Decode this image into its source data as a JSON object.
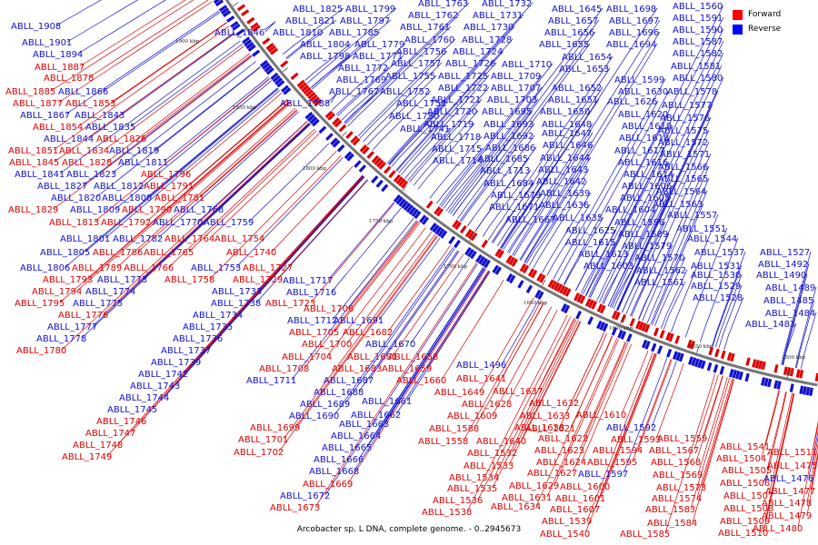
{
  "caption": "Arcobacter sp. L DNA, complete genome. - 0..2945673",
  "legend": [
    {
      "label": "Forward",
      "color": "#ff0000"
    },
    {
      "label": "Reverse",
      "color": "#0000ff"
    }
  ],
  "colors": {
    "forward": "#dd0000",
    "reverse": "#1010cc",
    "backbone": "#777777"
  },
  "ticks": [
    "1500 kbp",
    "1550 kbp",
    "1600 kbp",
    "1650 kbp",
    "1700 kbp",
    "1750 kbp",
    "1800 kbp",
    "1850 kbp",
    "1900 kbp"
  ],
  "labels": [
    {
      "t": "ABLL_1908",
      "s": "r"
    },
    {
      "t": "ABLL_1901",
      "s": "r"
    },
    {
      "t": "ABLL_1894",
      "s": "r"
    },
    {
      "t": "ABLL_1887",
      "s": "f"
    },
    {
      "t": "ABLL_1878",
      "s": "f"
    },
    {
      "t": "ABLL_1885",
      "s": "f"
    },
    {
      "t": "ABLL_1866",
      "s": "r"
    },
    {
      "t": "ABLL_1877",
      "s": "f"
    },
    {
      "t": "ABLL_1853",
      "s": "f"
    },
    {
      "t": "ABLL_1867",
      "s": "r"
    },
    {
      "t": "ABLL_1843",
      "s": "r"
    },
    {
      "t": "ABLL_1835",
      "s": "r"
    },
    {
      "t": "ABLL_1854",
      "s": "f"
    },
    {
      "t": "ABLL_1826",
      "s": "f"
    },
    {
      "t": "ABLL_1844",
      "s": "r"
    },
    {
      "t": "ABLL_1819",
      "s": "r"
    },
    {
      "t": "ABLL_1851",
      "s": "f"
    },
    {
      "t": "ABLL_1834",
      "s": "f"
    },
    {
      "t": "ABLL_1845",
      "s": "f"
    },
    {
      "t": "ABLL_1828",
      "s": "f"
    },
    {
      "t": "ABLL_1811",
      "s": "r"
    },
    {
      "t": "ABLL_1841",
      "s": "r"
    },
    {
      "t": "ABLL_1823",
      "s": "r"
    },
    {
      "t": "ABLL_1796",
      "s": "f"
    },
    {
      "t": "ABLL_1827",
      "s": "r"
    },
    {
      "t": "ABLL_1812",
      "s": "r"
    },
    {
      "t": "ABLL_1791",
      "s": "f"
    },
    {
      "t": "ABLL_1820",
      "s": "r"
    },
    {
      "t": "ABLL_1800",
      "s": "r"
    },
    {
      "t": "ABLL_1781",
      "s": "f"
    },
    {
      "t": "ABLL_1829",
      "s": "f"
    },
    {
      "t": "ABLL_1809",
      "s": "r"
    },
    {
      "t": "ABLL_1790",
      "s": "f"
    },
    {
      "t": "ABLL_1768",
      "s": "r"
    },
    {
      "t": "ABLL_1813",
      "s": "f"
    },
    {
      "t": "ABLL_1792",
      "s": "f"
    },
    {
      "t": "ABLL_1770",
      "s": "r"
    },
    {
      "t": "ABLL_1759",
      "s": "r"
    },
    {
      "t": "ABLL_1801",
      "s": "r"
    },
    {
      "t": "ABLL_1782",
      "s": "r"
    },
    {
      "t": "ABLL_1764",
      "s": "f"
    },
    {
      "t": "ABLL_1754",
      "s": "f"
    },
    {
      "t": "ABLL_1805",
      "s": "r"
    },
    {
      "t": "ABLL_1786",
      "s": "f"
    },
    {
      "t": "ABLL_1765",
      "s": "f"
    },
    {
      "t": "ABLL_1740",
      "s": "f"
    },
    {
      "t": "ABLL_1806",
      "s": "r"
    },
    {
      "t": "ABLL_1789",
      "s": "f"
    },
    {
      "t": "ABLL_1766",
      "s": "f"
    },
    {
      "t": "ABLL_1753",
      "s": "r"
    },
    {
      "t": "ABLL_1727",
      "s": "f"
    },
    {
      "t": "ABLL_1793",
      "s": "f"
    },
    {
      "t": "ABLL_1773",
      "s": "r"
    },
    {
      "t": "ABLL_1758",
      "s": "f"
    },
    {
      "t": "ABLL_1729",
      "s": "f"
    },
    {
      "t": "ABLL_1794",
      "s": "f"
    },
    {
      "t": "ABLL_1774",
      "s": "r"
    },
    {
      "t": "ABLL_1733",
      "s": "r"
    },
    {
      "t": "ABLL_1717",
      "s": "r"
    },
    {
      "t": "ABLL_1795",
      "s": "f"
    },
    {
      "t": "ABLL_1775",
      "s": "r"
    },
    {
      "t": "ABLL_1716",
      "s": "r"
    },
    {
      "t": "ABLL_1738",
      "s": "r"
    },
    {
      "t": "ABLL_1723",
      "s": "f"
    },
    {
      "t": "ABLL_1776",
      "s": "f"
    },
    {
      "t": "ABLL_1734",
      "s": "r"
    },
    {
      "t": "ABLL_1706",
      "s": "f"
    },
    {
      "t": "ABLL_1777",
      "s": "r"
    },
    {
      "t": "ABLL_1735",
      "s": "r"
    },
    {
      "t": "ABLL_1712",
      "s": "r"
    },
    {
      "t": "ABLL_1691",
      "s": "r"
    },
    {
      "t": "ABLL_1778",
      "s": "r"
    },
    {
      "t": "ABLL_1736",
      "s": "r"
    },
    {
      "t": "ABLL_1705",
      "s": "f"
    },
    {
      "t": "ABLL_1682",
      "s": "f"
    },
    {
      "t": "ABLL_1780",
      "s": "f"
    },
    {
      "t": "ABLL_1737",
      "s": "r"
    },
    {
      "t": "ABLL_1700",
      "s": "f"
    },
    {
      "t": "ABLL_1670",
      "s": "r"
    },
    {
      "t": "ABLL_1739",
      "s": "r"
    },
    {
      "t": "ABLL_1704",
      "s": "f"
    },
    {
      "t": "ABLL_1681",
      "s": "f"
    },
    {
      "t": "ABLL_1658",
      "s": "f"
    },
    {
      "t": "ABLL_1742",
      "s": "r"
    },
    {
      "t": "ABLL_1708",
      "s": "f"
    },
    {
      "t": "ABLL_1683",
      "s": "f"
    },
    {
      "t": "ABLL_1659",
      "s": "f"
    },
    {
      "t": "ABLL_1743",
      "s": "r"
    },
    {
      "t": "ABLL_1711",
      "s": "r"
    },
    {
      "t": "ABLL_1687",
      "s": "r"
    },
    {
      "t": "ABLL_1660",
      "s": "f"
    },
    {
      "t": "ABLL_1744",
      "s": "r"
    },
    {
      "t": "ABLL_1688",
      "s": "r"
    },
    {
      "t": "ABLL_1661",
      "s": "r"
    },
    {
      "t": "ABLL_1649",
      "s": "f"
    },
    {
      "t": "ABLL_1745",
      "s": "r"
    },
    {
      "t": "ABLL_1689",
      "s": "r"
    },
    {
      "t": "ABLL_1662",
      "s": "r"
    },
    {
      "t": "ABLL_1746",
      "s": "f"
    },
    {
      "t": "ABLL_1690",
      "s": "r"
    },
    {
      "t": "ABLL_1663",
      "s": "r"
    },
    {
      "t": "ABLL_1747",
      "s": "f"
    },
    {
      "t": "ABLL_1699",
      "s": "f"
    },
    {
      "t": "ABLL_1664",
      "s": "r"
    },
    {
      "t": "ABLL_1748",
      "s": "f"
    },
    {
      "t": "ABLL_1701",
      "s": "f"
    },
    {
      "t": "ABLL_1665",
      "s": "r"
    },
    {
      "t": "ABLL_1749",
      "s": "f"
    },
    {
      "t": "ABLL_1702",
      "s": "f"
    },
    {
      "t": "ABLL_1666",
      "s": "r"
    },
    {
      "t": "ABLL_1668",
      "s": "r"
    },
    {
      "t": "ABLL_1669",
      "s": "f"
    },
    {
      "t": "ABLL_1672",
      "s": "r"
    },
    {
      "t": "ABLL_1673",
      "s": "f"
    },
    {
      "t": "ABLL_1825",
      "s": "r"
    },
    {
      "t": "ABLL_1799",
      "s": "r"
    },
    {
      "t": "ABLL_1763",
      "s": "r"
    },
    {
      "t": "ABLL_1732",
      "s": "r"
    },
    {
      "t": "ABLL_1821",
      "s": "r"
    },
    {
      "t": "ABLL_1797",
      "s": "r"
    },
    {
      "t": "ABLL_1762",
      "s": "r"
    },
    {
      "t": "ABLL_1731",
      "s": "r"
    },
    {
      "t": "ABLL_1810",
      "s": "r"
    },
    {
      "t": "ABLL_1785",
      "s": "r"
    },
    {
      "t": "ABLL_1761",
      "s": "r"
    },
    {
      "t": "ABLL_1730",
      "s": "r"
    },
    {
      "t": "ABLL_1846",
      "s": "r"
    },
    {
      "t": "ABLL_1804",
      "s": "r"
    },
    {
      "t": "ABLL_1779",
      "s": "r"
    },
    {
      "t": "ABLL_1760",
      "s": "r"
    },
    {
      "t": "ABLL_1728",
      "s": "r"
    },
    {
      "t": "ABLL_1798",
      "s": "r"
    },
    {
      "t": "ABLL_1771",
      "s": "r"
    },
    {
      "t": "ABLL_1756",
      "s": "r"
    },
    {
      "t": "ABLL_1724",
      "s": "r"
    },
    {
      "t": "ABLL_1772",
      "s": "r"
    },
    {
      "t": "ABLL_1757",
      "s": "r"
    },
    {
      "t": "ABLL_1726",
      "s": "r"
    },
    {
      "t": "ABLL_1710",
      "s": "r"
    },
    {
      "t": "ABLL_1769",
      "s": "r"
    },
    {
      "t": "ABLL_1755",
      "s": "r"
    },
    {
      "t": "ABLL_1725",
      "s": "r"
    },
    {
      "t": "ABLL_1709",
      "s": "r"
    },
    {
      "t": "ABLL_1767",
      "s": "r"
    },
    {
      "t": "ABLL_1752",
      "s": "r"
    },
    {
      "t": "ABLL_1722",
      "s": "r"
    },
    {
      "t": "ABLL_1707",
      "s": "r"
    },
    {
      "t": "ABLL_1788",
      "s": "r"
    },
    {
      "t": "ABLL_1751",
      "s": "r"
    },
    {
      "t": "ABLL_1721",
      "s": "r"
    },
    {
      "t": "ABLL_1703",
      "s": "r"
    },
    {
      "t": "ABLL_1750",
      "s": "r"
    },
    {
      "t": "ABLL_1720",
      "s": "r"
    },
    {
      "t": "ABLL_1695",
      "s": "r"
    },
    {
      "t": "ABLL_1741",
      "s": "r"
    },
    {
      "t": "ABLL_1719",
      "s": "r"
    },
    {
      "t": "ABLL_1693",
      "s": "r"
    },
    {
      "t": "ABLL_1718",
      "s": "r"
    },
    {
      "t": "ABLL_1692",
      "s": "r"
    },
    {
      "t": "ABLL_1715",
      "s": "r"
    },
    {
      "t": "ABLL_1686",
      "s": "r"
    },
    {
      "t": "ABLL_1714",
      "s": "r"
    },
    {
      "t": "ABLL_1685",
      "s": "r"
    },
    {
      "t": "ABLL_1713",
      "s": "r"
    },
    {
      "t": "ABLL_1684",
      "s": "r"
    },
    {
      "t": "ABLL_1679",
      "s": "r"
    },
    {
      "t": "ABLL_1671",
      "s": "r"
    },
    {
      "t": "ABLL_1667",
      "s": "r"
    },
    {
      "t": "ABLL_1645",
      "s": "r"
    },
    {
      "t": "ABLL_1698",
      "s": "r"
    },
    {
      "t": "ABLL_1657",
      "s": "r"
    },
    {
      "t": "ABLL_1697",
      "s": "r"
    },
    {
      "t": "ABLL_1656",
      "s": "r"
    },
    {
      "t": "ABLL_1696",
      "s": "r"
    },
    {
      "t": "ABLL_1655",
      "s": "r"
    },
    {
      "t": "ABLL_1694",
      "s": "r"
    },
    {
      "t": "ABLL_1654",
      "s": "r"
    },
    {
      "t": "ABLL_1653",
      "s": "r"
    },
    {
      "t": "ABLL_1652",
      "s": "r"
    },
    {
      "t": "ABLL_1651",
      "s": "r"
    },
    {
      "t": "ABLL_1650",
      "s": "r"
    },
    {
      "t": "ABLL_1648",
      "s": "r"
    },
    {
      "t": "ABLL_1647",
      "s": "r"
    },
    {
      "t": "ABLL_1646",
      "s": "r"
    },
    {
      "t": "ABLL_1644",
      "s": "r"
    },
    {
      "t": "ABLL_1643",
      "s": "r"
    },
    {
      "t": "ABLL_1642",
      "s": "r"
    },
    {
      "t": "ABLL_1639",
      "s": "r"
    },
    {
      "t": "ABLL_1636",
      "s": "r"
    },
    {
      "t": "ABLL_1635",
      "s": "r"
    },
    {
      "t": "ABLL_1625",
      "s": "r"
    },
    {
      "t": "ABLL_1615",
      "s": "r"
    },
    {
      "t": "ABLL_1613",
      "s": "r"
    },
    {
      "t": "ABLL_1603",
      "s": "r"
    },
    {
      "t": "ABLL_1599",
      "s": "r"
    },
    {
      "t": "ABLL_1630",
      "s": "r"
    },
    {
      "t": "ABLL_1626",
      "s": "r"
    },
    {
      "t": "ABLL_1620",
      "s": "r"
    },
    {
      "t": "ABLL_1619",
      "s": "r"
    },
    {
      "t": "ABLL_1618",
      "s": "r"
    },
    {
      "t": "ABLL_1617",
      "s": "r"
    },
    {
      "t": "ABLL_1616",
      "s": "r"
    },
    {
      "t": "ABLL_1614",
      "s": "r"
    },
    {
      "t": "ABLL_1606",
      "s": "r"
    },
    {
      "t": "ABLL_1605",
      "s": "r"
    },
    {
      "t": "ABLL_1604",
      "s": "r"
    },
    {
      "t": "ABLL_1596",
      "s": "r"
    },
    {
      "t": "ABLL_1589",
      "s": "r"
    },
    {
      "t": "ABLL_1579",
      "s": "r"
    },
    {
      "t": "ABLL_1570",
      "s": "r"
    },
    {
      "t": "ABLL_1562",
      "s": "r"
    },
    {
      "t": "ABLL_1561",
      "s": "r"
    },
    {
      "t": "ABLL_1560",
      "s": "r"
    },
    {
      "t": "ABLL_1591",
      "s": "r"
    },
    {
      "t": "ABLL_1590",
      "s": "r"
    },
    {
      "t": "ABLL_1587",
      "s": "r"
    },
    {
      "t": "ABLL_1582",
      "s": "r"
    },
    {
      "t": "ABLL_1581",
      "s": "r"
    },
    {
      "t": "ABLL_1580",
      "s": "r"
    },
    {
      "t": "ABLL_1578",
      "s": "r"
    },
    {
      "t": "ABLL_1577",
      "s": "r"
    },
    {
      "t": "ABLL_1576",
      "s": "r"
    },
    {
      "t": "ABLL_1575",
      "s": "r"
    },
    {
      "t": "ABLL_1572",
      "s": "r"
    },
    {
      "t": "ABLL_1571",
      "s": "r"
    },
    {
      "t": "ABLL_1566",
      "s": "r"
    },
    {
      "t": "ABLL_1565",
      "s": "r"
    },
    {
      "t": "ABLL_1564",
      "s": "r"
    },
    {
      "t": "ABLL_1563",
      "s": "r"
    },
    {
      "t": "ABLL_1557",
      "s": "r"
    },
    {
      "t": "ABLL_1551",
      "s": "r"
    },
    {
      "t": "ABLL_1544",
      "s": "r"
    },
    {
      "t": "ABLL_1537",
      "s": "r"
    },
    {
      "t": "ABLL_1531",
      "s": "r"
    },
    {
      "t": "ABLL_1530",
      "s": "r"
    },
    {
      "t": "ABLL_1529",
      "s": "r"
    },
    {
      "t": "ABLL_1528",
      "s": "r"
    },
    {
      "t": "ABLL_1527",
      "s": "r"
    },
    {
      "t": "ABLL_1492",
      "s": "r"
    },
    {
      "t": "ABLL_1490",
      "s": "r"
    },
    {
      "t": "ABLL_1489",
      "s": "r"
    },
    {
      "t": "ABLL_1485",
      "s": "r"
    },
    {
      "t": "ABLL_1484",
      "s": "r"
    },
    {
      "t": "ABLL_1483",
      "s": "r"
    },
    {
      "t": "ABLL_1496",
      "s": "r"
    },
    {
      "t": "ABLL_1641",
      "s": "f"
    },
    {
      "t": "ABLL_1637",
      "s": "f"
    },
    {
      "t": "ABLL_1628",
      "s": "f"
    },
    {
      "t": "ABLL_1632",
      "s": "f"
    },
    {
      "t": "ABLL_1609",
      "s": "f"
    },
    {
      "t": "ABLL_1633",
      "s": "f"
    },
    {
      "t": "ABLL_1610",
      "s": "f"
    },
    {
      "t": "ABLL_1588",
      "s": "f"
    },
    {
      "t": "ABLL_1638",
      "s": "f"
    },
    {
      "t": "ABLL_1621",
      "s": "f"
    },
    {
      "t": "ABLL_1592",
      "s": "r"
    },
    {
      "t": "ABLL_1558",
      "s": "f"
    },
    {
      "t": "ABLL_1640",
      "s": "f"
    },
    {
      "t": "ABLL_1622",
      "s": "f"
    },
    {
      "t": "ABLL_1593",
      "s": "f"
    },
    {
      "t": "ABLL_1559",
      "s": "f"
    },
    {
      "t": "ABLL_1532",
      "s": "f"
    },
    {
      "t": "ABLL_1623",
      "s": "f"
    },
    {
      "t": "ABLL_1594",
      "s": "f"
    },
    {
      "t": "ABLL_1567",
      "s": "f"
    },
    {
      "t": "ABLL_1533",
      "s": "f"
    },
    {
      "t": "ABLL_1624",
      "s": "f"
    },
    {
      "t": "ABLL_1595",
      "s": "f"
    },
    {
      "t": "ABLL_1568",
      "s": "f"
    },
    {
      "t": "ABLL_1534",
      "s": "f"
    },
    {
      "t": "ABLL_1627",
      "s": "f"
    },
    {
      "t": "ABLL_1597",
      "s": "r"
    },
    {
      "t": "ABLL_1569",
      "s": "f"
    },
    {
      "t": "ABLL_1535",
      "s": "f"
    },
    {
      "t": "ABLL_1629",
      "s": "f"
    },
    {
      "t": "ABLL_1600",
      "s": "f"
    },
    {
      "t": "ABLL_1573",
      "s": "f"
    },
    {
      "t": "ABLL_1536",
      "s": "f"
    },
    {
      "t": "ABLL_1631",
      "s": "f"
    },
    {
      "t": "ABLL_1601",
      "s": "f"
    },
    {
      "t": "ABLL_1574",
      "s": "f"
    },
    {
      "t": "ABLL_1538",
      "s": "f"
    },
    {
      "t": "ABLL_1634",
      "s": "f"
    },
    {
      "t": "ABLL_1607",
      "s": "f"
    },
    {
      "t": "ABLL_1583",
      "s": "f"
    },
    {
      "t": "ABLL_1539",
      "s": "f"
    },
    {
      "t": "ABLL_1584",
      "s": "f"
    },
    {
      "t": "ABLL_1540",
      "s": "f"
    },
    {
      "t": "ABLL_1585",
      "s": "f"
    },
    {
      "t": "ABLL_1541",
      "s": "f"
    },
    {
      "t": "ABLL_1504",
      "s": "f"
    },
    {
      "t": "ABLL_1505",
      "s": "f"
    },
    {
      "t": "ABLL_1506",
      "s": "f"
    },
    {
      "t": "ABLL_1507",
      "s": "f"
    },
    {
      "t": "ABLL_1508",
      "s": "f"
    },
    {
      "t": "ABLL_1509",
      "s": "f"
    },
    {
      "t": "ABLL_1510",
      "s": "f"
    },
    {
      "t": "ABLL_1511",
      "s": "f"
    },
    {
      "t": "ABLL_1475",
      "s": "f"
    },
    {
      "t": "ABLL_1476",
      "s": "r"
    },
    {
      "t": "ABLL_1477",
      "s": "f"
    },
    {
      "t": "ABLL_1478",
      "s": "f"
    },
    {
      "t": "ABLL_1479",
      "s": "f"
    },
    {
      "t": "ABLL_1480",
      "s": "f"
    },
    {
      "t": "ABLL_1481",
      "s": "f"
    }
  ]
}
